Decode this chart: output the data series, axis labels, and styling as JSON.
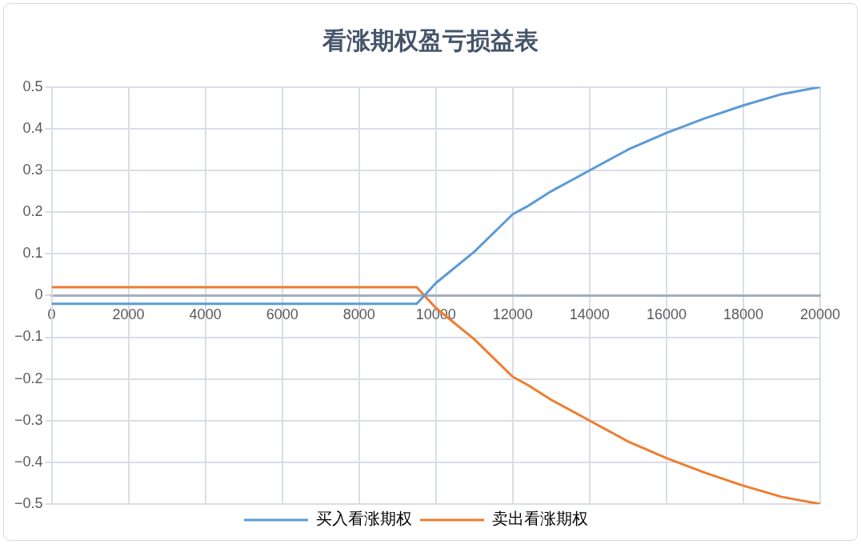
{
  "chart_data": {
    "type": "line",
    "title": "看涨期权盈亏损益表",
    "x": [
      0,
      9500,
      9700,
      10000,
      11000,
      12000,
      12400,
      13000,
      14000,
      15000,
      16000,
      17000,
      18000,
      19000,
      20000
    ],
    "series": [
      {
        "name": "买入看涨期权",
        "color": "#5b9bd5",
        "values": [
          -0.02,
          -0.02,
          0,
          0.03,
          0.105,
          0.195,
          0.215,
          0.25,
          0.3,
          0.35,
          0.39,
          0.425,
          0.456,
          0.483,
          0.5
        ]
      },
      {
        "name": "卖出看涨期权",
        "color": "#ed7d31",
        "values": [
          0.02,
          0.02,
          0,
          -0.03,
          -0.105,
          -0.195,
          -0.215,
          -0.25,
          -0.3,
          -0.35,
          -0.39,
          -0.425,
          -0.456,
          -0.483,
          -0.5
        ]
      }
    ],
    "xlim": [
      0,
      20000
    ],
    "xticks": [
      0,
      2000,
      4000,
      6000,
      8000,
      10000,
      12000,
      14000,
      16000,
      18000,
      20000
    ],
    "ylim": [
      -0.5,
      0.5
    ],
    "yticks": [
      -0.5,
      -0.4,
      -0.3,
      -0.2,
      -0.1,
      0,
      0.1,
      0.2,
      0.3,
      0.4,
      0.5
    ],
    "grid": true,
    "legend": "bottom",
    "marker": "none",
    "line_style": "solid"
  }
}
